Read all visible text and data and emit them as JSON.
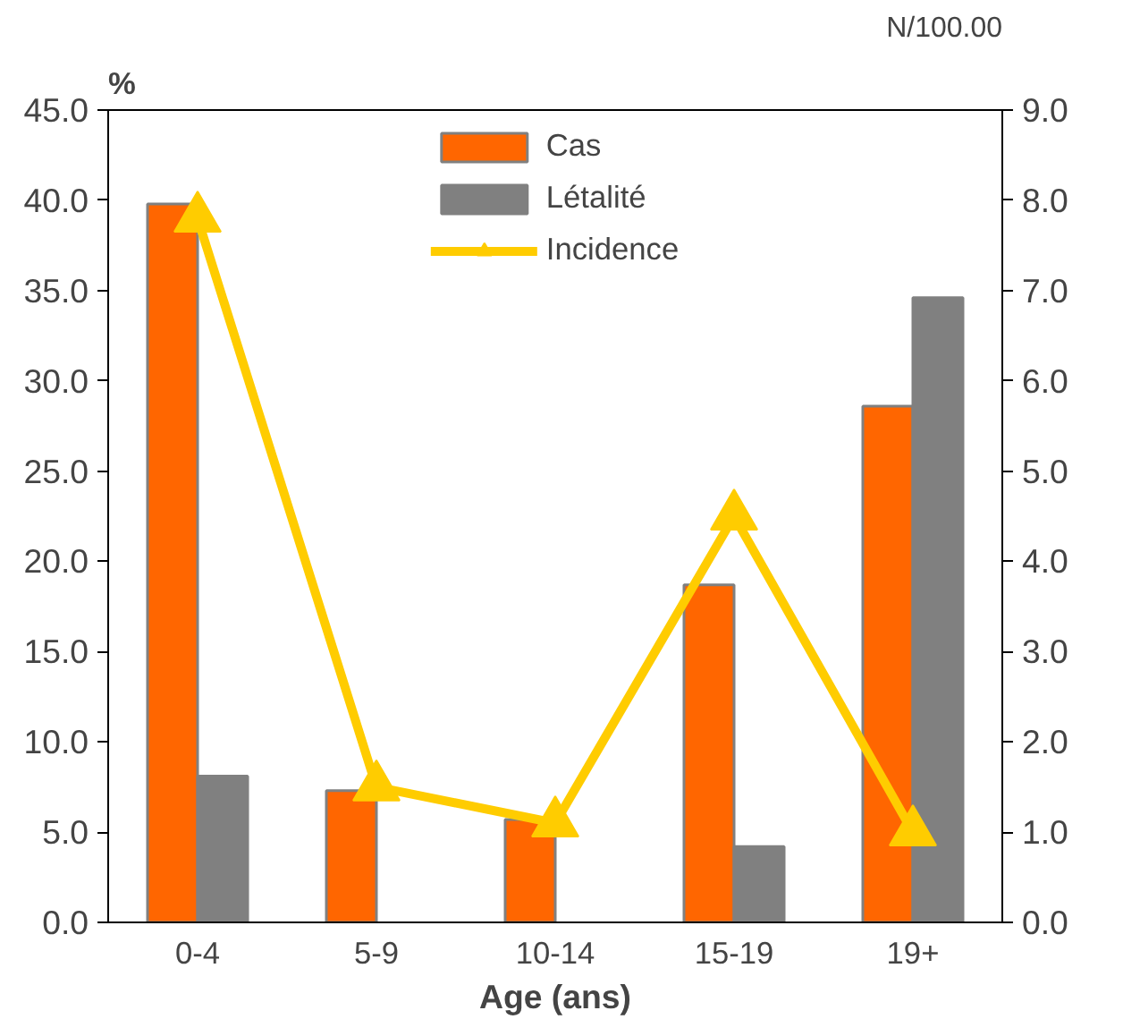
{
  "chart_data": {
    "type": "bar",
    "xlabel": "Age (ans)",
    "ylabel": "%",
    "y2label": "N/100.00",
    "categories": [
      "0-4",
      "5-9",
      "10-14",
      "15-19",
      "19+"
    ],
    "series": [
      {
        "name": "Cas",
        "color": "#ff6600",
        "values": [
          39.8,
          7.3,
          5.7,
          18.7,
          28.6
        ]
      },
      {
        "name": "Létalité",
        "color": "#808080",
        "values": [
          8.1,
          null,
          null,
          4.2,
          34.6
        ]
      },
      {
        "name": "Incidence",
        "type": "line",
        "axis": "y2",
        "color": "#ffcc00",
        "marker": "triangle",
        "values": [
          7.8,
          1.5,
          1.1,
          4.5,
          1.0
        ]
      }
    ],
    "ylim": [
      0,
      45
    ],
    "yticks": [
      {
        "value": 0,
        "label": "0.0"
      },
      {
        "value": 5,
        "label": "5.0"
      },
      {
        "value": 10,
        "label": "10.0"
      },
      {
        "value": 15,
        "label": "15.0"
      },
      {
        "value": 20,
        "label": "20.0"
      },
      {
        "value": 25,
        "label": "25.0"
      },
      {
        "value": 30,
        "label": "30.0"
      },
      {
        "value": 35,
        "label": "35.0"
      },
      {
        "value": 40,
        "label": "40.0"
      },
      {
        "value": 45,
        "label": "45.0"
      }
    ],
    "y2lim": [
      0,
      9
    ],
    "y2ticks": [
      {
        "value": 0,
        "label": "0.0"
      },
      {
        "value": 1,
        "label": "1.0"
      },
      {
        "value": 2,
        "label": "2.0"
      },
      {
        "value": 3,
        "label": "3.0"
      },
      {
        "value": 4,
        "label": "4.0"
      },
      {
        "value": 5,
        "label": "5.0"
      },
      {
        "value": 6,
        "label": "6.0"
      },
      {
        "value": 7,
        "label": "7.0"
      },
      {
        "value": 8,
        "label": "8.0"
      },
      {
        "value": 9,
        "label": "9.0"
      }
    ],
    "grid": false,
    "legend": "top"
  }
}
